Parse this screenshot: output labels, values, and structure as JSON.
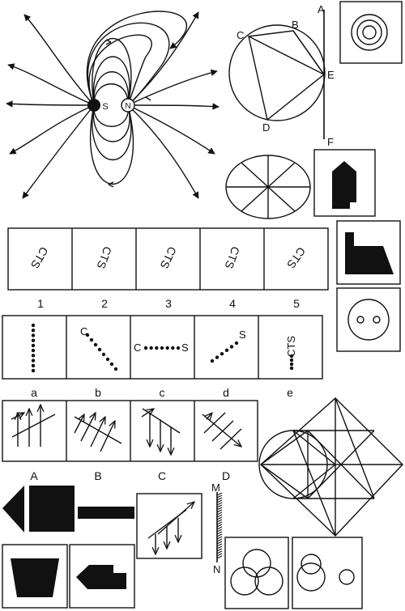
{
  "magnet": {
    "south_label": "S",
    "north_label": "N"
  },
  "circle_diagram": {
    "labels": [
      "A",
      "B",
      "C",
      "D",
      "E",
      "F"
    ]
  },
  "panel_row_1": {
    "captions": [
      "1",
      "2",
      "3",
      "4",
      "5"
    ],
    "cell_text": "CTS"
  },
  "panel_row_2": {
    "captions": [
      "a",
      "b",
      "c",
      "d",
      "e"
    ],
    "c_left": "C",
    "c_right": "S",
    "b_text": "C",
    "d_text": "S",
    "e_text": "CTS"
  },
  "panel_row_3": {
    "captions": [
      "A",
      "B",
      "C",
      "D"
    ]
  },
  "scale_bar": {
    "top_label": "M",
    "bottom_label": "N"
  },
  "colors": {
    "ink": "#111111",
    "background": "#ffffff"
  }
}
